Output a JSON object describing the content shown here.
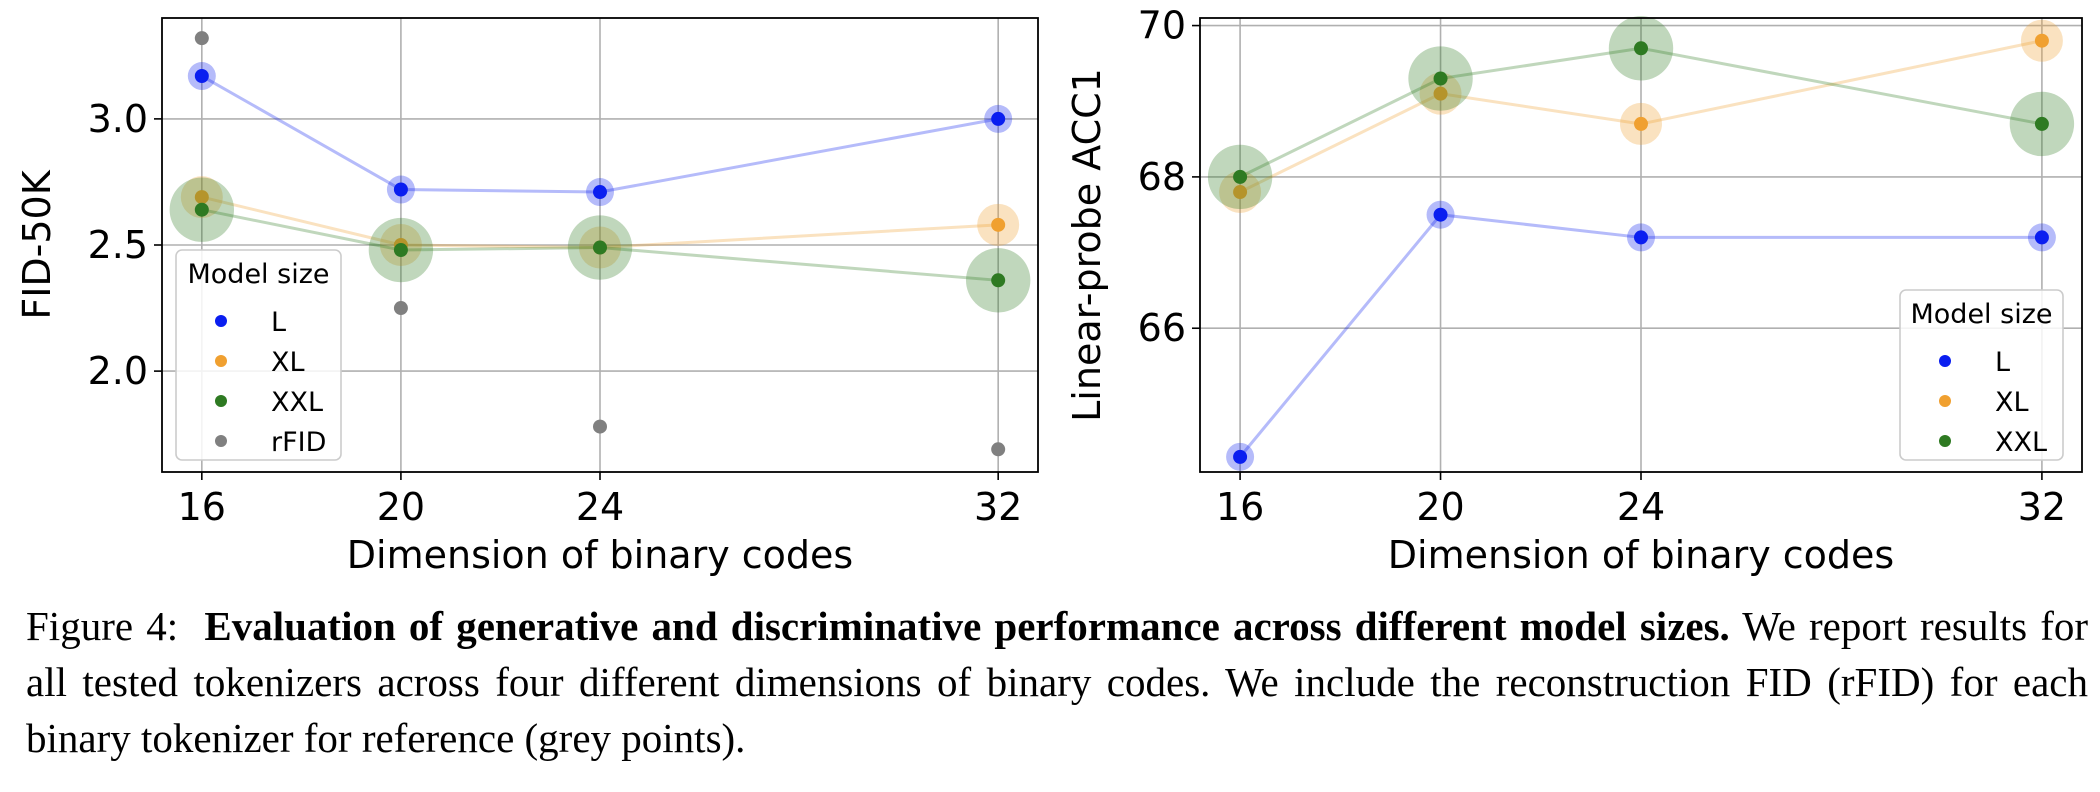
{
  "caption": {
    "label": "Figure 4:",
    "bold": "Evaluation of generative and discriminative performance across different model sizes.",
    "text": "We report results for all tested tokenizers across four different dimensions of binary codes. We include the reconstruction FID (rFID) for each binary tokenizer for reference (grey points)."
  },
  "chart_data": [
    {
      "type": "scatter",
      "title": "",
      "xlabel": "Dimension of binary codes",
      "ylabel": "FID-50K",
      "x": [
        16,
        20,
        24,
        32
      ],
      "xlim": [
        15.2,
        32.8
      ],
      "ylim": [
        1.6,
        3.4
      ],
      "xticks": [
        "16",
        "20",
        "24",
        "32"
      ],
      "yticks": [
        "2.0",
        "2.5",
        "3.0"
      ],
      "grid": true,
      "legend": {
        "title": "Model size",
        "position": "lower-left"
      },
      "series": [
        {
          "name": "L",
          "color": "#0a1ef0",
          "values": [
            3.17,
            2.72,
            2.71,
            3.0
          ],
          "size": [
            1,
            1,
            1,
            1
          ],
          "line": true
        },
        {
          "name": "XL",
          "color": "#f0a030",
          "values": [
            2.69,
            2.5,
            2.49,
            2.58
          ],
          "size": [
            1.5,
            1.5,
            1.5,
            1.5
          ],
          "line": true
        },
        {
          "name": "XXL",
          "color": "#2e7a22",
          "values": [
            2.64,
            2.48,
            2.49,
            2.36
          ],
          "size": [
            2.3,
            2.3,
            2.3,
            2.3
          ],
          "line": true
        },
        {
          "name": "rFID",
          "color": "#808080",
          "values": [
            3.32,
            2.25,
            1.78,
            1.69
          ],
          "size": [
            0,
            0,
            0,
            0
          ],
          "line": false
        }
      ]
    },
    {
      "type": "scatter",
      "title": "",
      "xlabel": "Dimension of binary codes",
      "ylabel": "Linear-probe ACC1",
      "x": [
        16,
        20,
        24,
        32
      ],
      "xlim": [
        15.2,
        32.8
      ],
      "ylim": [
        64.1,
        70.1
      ],
      "xticks": [
        "16",
        "20",
        "24",
        "32"
      ],
      "yticks": [
        "66",
        "68",
        "70"
      ],
      "grid": true,
      "legend": {
        "title": "Model size",
        "position": "lower-right"
      },
      "series": [
        {
          "name": "L",
          "color": "#0a1ef0",
          "values": [
            64.3,
            67.5,
            67.2,
            67.2
          ],
          "size": [
            1,
            1,
            1,
            1
          ],
          "line": true
        },
        {
          "name": "XL",
          "color": "#f0a030",
          "values": [
            67.8,
            69.1,
            68.7,
            69.8
          ],
          "size": [
            1.5,
            1.5,
            1.5,
            1.5
          ],
          "line": true
        },
        {
          "name": "XXL",
          "color": "#2e7a22",
          "values": [
            68.0,
            69.3,
            69.7,
            68.7
          ],
          "size": [
            2.3,
            2.3,
            2.3,
            2.3
          ],
          "line": true
        }
      ]
    }
  ]
}
